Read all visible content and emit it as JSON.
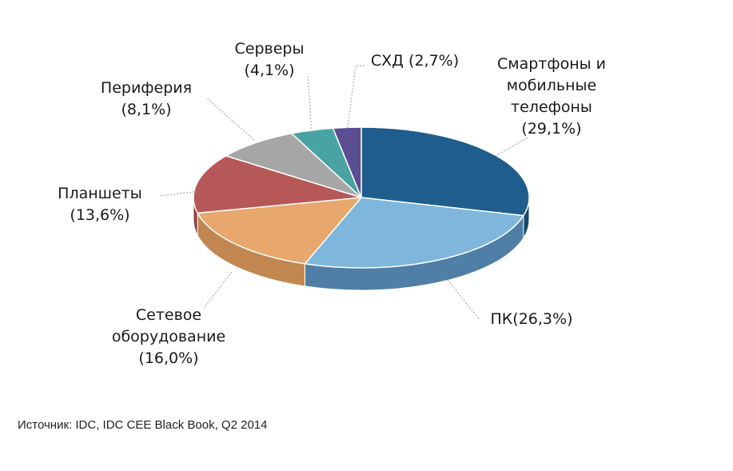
{
  "chart_data": {
    "type": "pie",
    "style": "3d",
    "start_angle_deg": -90,
    "direction": "clockwise",
    "slices": [
      {
        "label_lines": [
          "Смартфоны и",
          "мобильные",
          "телефоны",
          "(29,1%)"
        ],
        "value": 29.1,
        "color": "#1f5e8c",
        "side_color": "#17476b"
      },
      {
        "label_lines": [
          "ПК(26,3%)"
        ],
        "value": 26.3,
        "color": "#7fb6dc",
        "side_color": "#4f7fa6"
      },
      {
        "label_lines": [
          "Сетевое",
          "оборудование",
          "(16,0%)"
        ],
        "value": 16.0,
        "color": "#e8a76d",
        "side_color": "#c28650"
      },
      {
        "label_lines": [
          "Планшеты",
          "(13,6%)"
        ],
        "value": 13.6,
        "color": "#b65857",
        "side_color": "#8f4241"
      },
      {
        "label_lines": [
          "Периферия",
          "(8,1%)"
        ],
        "value": 8.1,
        "color": "#a6a6a6",
        "side_color": "#838383"
      },
      {
        "label_lines": [
          "Серверы",
          "(4,1%)"
        ],
        "value": 4.1,
        "color": "#4aa3a3",
        "side_color": "#377f7f"
      },
      {
        "label_lines": [
          "СХД (2,7%)"
        ],
        "value": 2.7,
        "color": "#5a4d92",
        "side_color": "#433970"
      }
    ]
  },
  "source_note": "Источник: IDC, IDC CEE Black Book, Q2 2014"
}
